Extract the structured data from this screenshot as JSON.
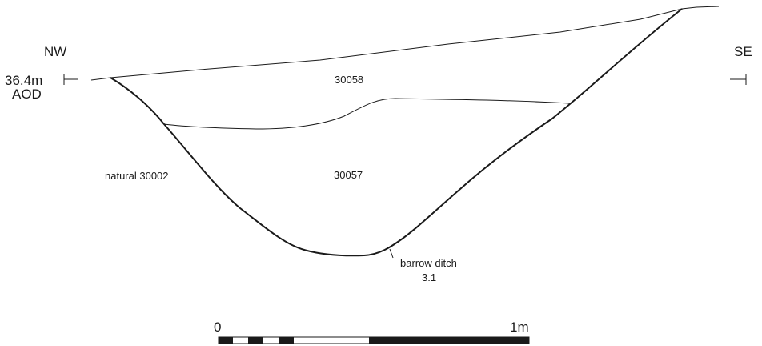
{
  "orientation": {
    "left": "NW",
    "right": "SE"
  },
  "datum": {
    "level": "36.4m",
    "unit_line": "AOD"
  },
  "contexts": {
    "upper_fill": "30058",
    "lower_fill": "30057",
    "natural": "natural 30002"
  },
  "feature": {
    "name": "barrow ditch",
    "number": "3.1"
  },
  "scale_bar": {
    "start_label": "0",
    "end_label": "1m"
  }
}
